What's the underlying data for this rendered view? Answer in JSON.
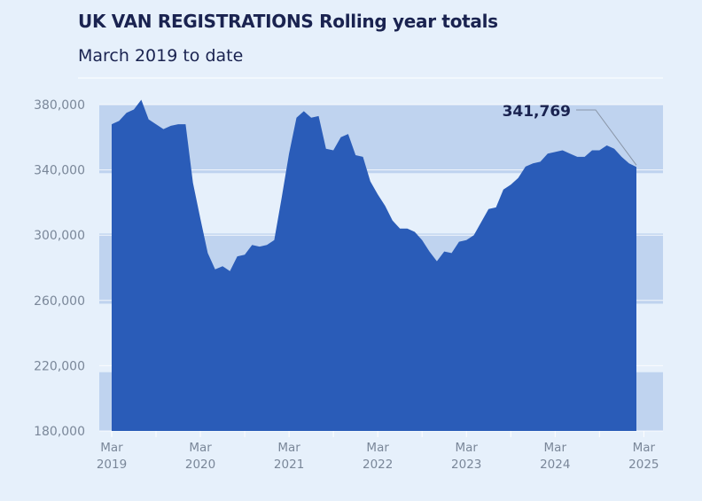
{
  "header": {
    "title": "UK VAN REGISTRATIONS Rolling year totals",
    "subtitle": "March 2019 to date"
  },
  "chart_data": {
    "type": "area",
    "title": "UK VAN REGISTRATIONS Rolling year totals",
    "subtitle": "March 2019 to date",
    "xlabel": "",
    "ylabel": "",
    "ylim": [
      180000,
      380000
    ],
    "y_ticks": [
      180000,
      220000,
      260000,
      300000,
      340000,
      380000
    ],
    "y_tick_labels": [
      "180,000",
      "220,000",
      "260,000",
      "300,000",
      "340,000",
      "380,000"
    ],
    "x_ticks": [
      {
        "month": 0,
        "line1": "Mar",
        "line2": "2019"
      },
      {
        "month": 12,
        "line1": "Mar",
        "line2": "2020"
      },
      {
        "month": 24,
        "line1": "Mar",
        "line2": "2021"
      },
      {
        "month": 36,
        "line1": "Mar",
        "line2": "2022"
      },
      {
        "month": 48,
        "line1": "Mar",
        "line2": "2023"
      },
      {
        "month": 60,
        "line1": "Mar",
        "line2": "2024"
      },
      {
        "month": 72,
        "line1": "Mar",
        "line2": "2025"
      }
    ],
    "x_start": "2019-03",
    "x_end": "2025-02",
    "series": [
      {
        "color": "#2a5cb8",
        "values": [
          368000,
          370000,
          375000,
          377000,
          383000,
          371000,
          368000,
          365000,
          367000,
          368000,
          368000,
          332000,
          310000,
          289000,
          279000,
          281000,
          278000,
          287000,
          288000,
          294000,
          293000,
          294000,
          297000,
          323000,
          350000,
          372000,
          376000,
          372000,
          373000,
          353000,
          352000,
          360000,
          362000,
          349000,
          348000,
          333000,
          325000,
          318000,
          309000,
          304000,
          304000,
          302000,
          297000,
          290000,
          284000,
          290000,
          289000,
          296000,
          297000,
          300000,
          308000,
          316000,
          317000,
          328000,
          331000,
          335000,
          342000,
          344000,
          345000,
          350000,
          351000,
          352000,
          350000,
          348000,
          348000,
          352000,
          352000,
          355000,
          353000,
          348000,
          344000,
          341769
        ]
      }
    ],
    "annotation": {
      "label": "341,769",
      "value": 341769
    },
    "bands": [
      [
        180000,
        216000
      ],
      [
        258000,
        301000
      ],
      [
        338000,
        380000
      ]
    ],
    "colors": {
      "background": "#e6f0fb",
      "band": "#bfd3ef",
      "area": "#2a5cb8",
      "text": "#1a2350",
      "tick": "#7a8799"
    }
  }
}
